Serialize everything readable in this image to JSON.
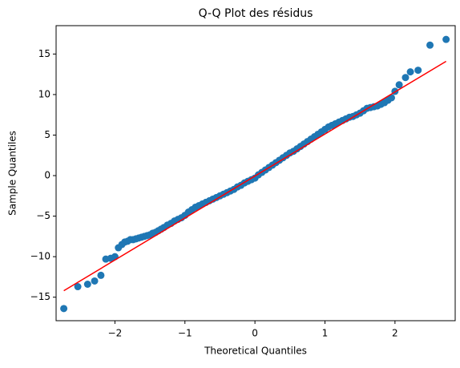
{
  "chart_data": {
    "type": "scatter",
    "title": "Q-Q Plot des résidus",
    "xlabel": "Theoretical Quantiles",
    "ylabel": "Sample Quantiles",
    "xlim": [
      -2.84,
      2.86
    ],
    "ylim": [
      -17.9,
      18.5
    ],
    "xticks": [
      {
        "value": -2,
        "label": "−2"
      },
      {
        "value": -1,
        "label": "−1"
      },
      0,
      1,
      2
    ],
    "yticks": [
      {
        "value": -15,
        "label": "−15"
      },
      {
        "value": -10,
        "label": "−10"
      },
      {
        "value": -5,
        "label": "−5"
      },
      0,
      5,
      10,
      15
    ],
    "grid": false,
    "series": [
      {
        "color": "#1f77b4",
        "mode": "markers",
        "x": [
          -2.73,
          -2.53,
          -2.39,
          -2.29,
          -2.2,
          -2.13,
          -2.06,
          -2.0,
          -1.95,
          -1.9,
          -1.86,
          -1.82,
          -1.78,
          -1.74,
          -1.7,
          -1.66,
          -1.62,
          -1.58,
          -1.54,
          -1.5,
          -1.46,
          -1.42,
          -1.38,
          -1.34,
          -1.3,
          -1.25,
          -1.2,
          -1.15,
          -1.1,
          -1.05,
          -1.0,
          -0.95,
          -0.9,
          -0.85,
          -0.8,
          -0.75,
          -0.7,
          -0.65,
          -0.6,
          -0.55,
          -0.5,
          -0.45,
          -0.4,
          -0.35,
          -0.3,
          -0.25,
          -0.2,
          -0.15,
          -0.1,
          -0.05,
          0,
          0.05,
          0.1,
          0.15,
          0.2,
          0.25,
          0.3,
          0.35,
          0.4,
          0.45,
          0.5,
          0.55,
          0.6,
          0.65,
          0.7,
          0.75,
          0.8,
          0.85,
          0.9,
          0.95,
          1.0,
          1.05,
          1.1,
          1.15,
          1.2,
          1.25,
          1.3,
          1.35,
          1.4,
          1.45,
          1.5,
          1.55,
          1.6,
          1.65,
          1.7,
          1.75,
          1.8,
          1.85,
          1.9,
          1.95,
          2.0,
          2.06,
          2.15,
          2.22,
          2.33,
          2.5,
          2.73
        ],
        "values": [
          -16.4,
          -13.7,
          -13.4,
          -13.0,
          -12.3,
          -10.3,
          -10.2,
          -10.0,
          -8.9,
          -8.5,
          -8.2,
          -8.1,
          -7.9,
          -7.9,
          -7.8,
          -7.7,
          -7.6,
          -7.5,
          -7.4,
          -7.3,
          -7.1,
          -7.0,
          -6.8,
          -6.6,
          -6.4,
          -6.1,
          -5.9,
          -5.6,
          -5.4,
          -5.2,
          -4.9,
          -4.5,
          -4.2,
          -3.9,
          -3.7,
          -3.5,
          -3.3,
          -3.1,
          -2.9,
          -2.7,
          -2.5,
          -2.3,
          -2.1,
          -1.9,
          -1.7,
          -1.4,
          -1.2,
          -0.9,
          -0.7,
          -0.5,
          -0.3,
          0.1,
          0.4,
          0.7,
          1.0,
          1.3,
          1.6,
          1.9,
          2.2,
          2.5,
          2.8,
          3.0,
          3.3,
          3.6,
          3.9,
          4.2,
          4.5,
          4.8,
          5.1,
          5.4,
          5.7,
          6.0,
          6.2,
          6.4,
          6.6,
          6.8,
          7.0,
          7.2,
          7.3,
          7.5,
          7.7,
          8.0,
          8.3,
          8.4,
          8.5,
          8.6,
          8.8,
          9.0,
          9.3,
          9.6,
          10.4,
          11.2,
          12.1,
          12.8,
          13.0,
          16.1,
          16.8
        ]
      },
      {
        "color": "red",
        "mode": "line",
        "x": [
          -2.73,
          2.73
        ],
        "values": [
          -14.2,
          14.1
        ]
      }
    ]
  }
}
